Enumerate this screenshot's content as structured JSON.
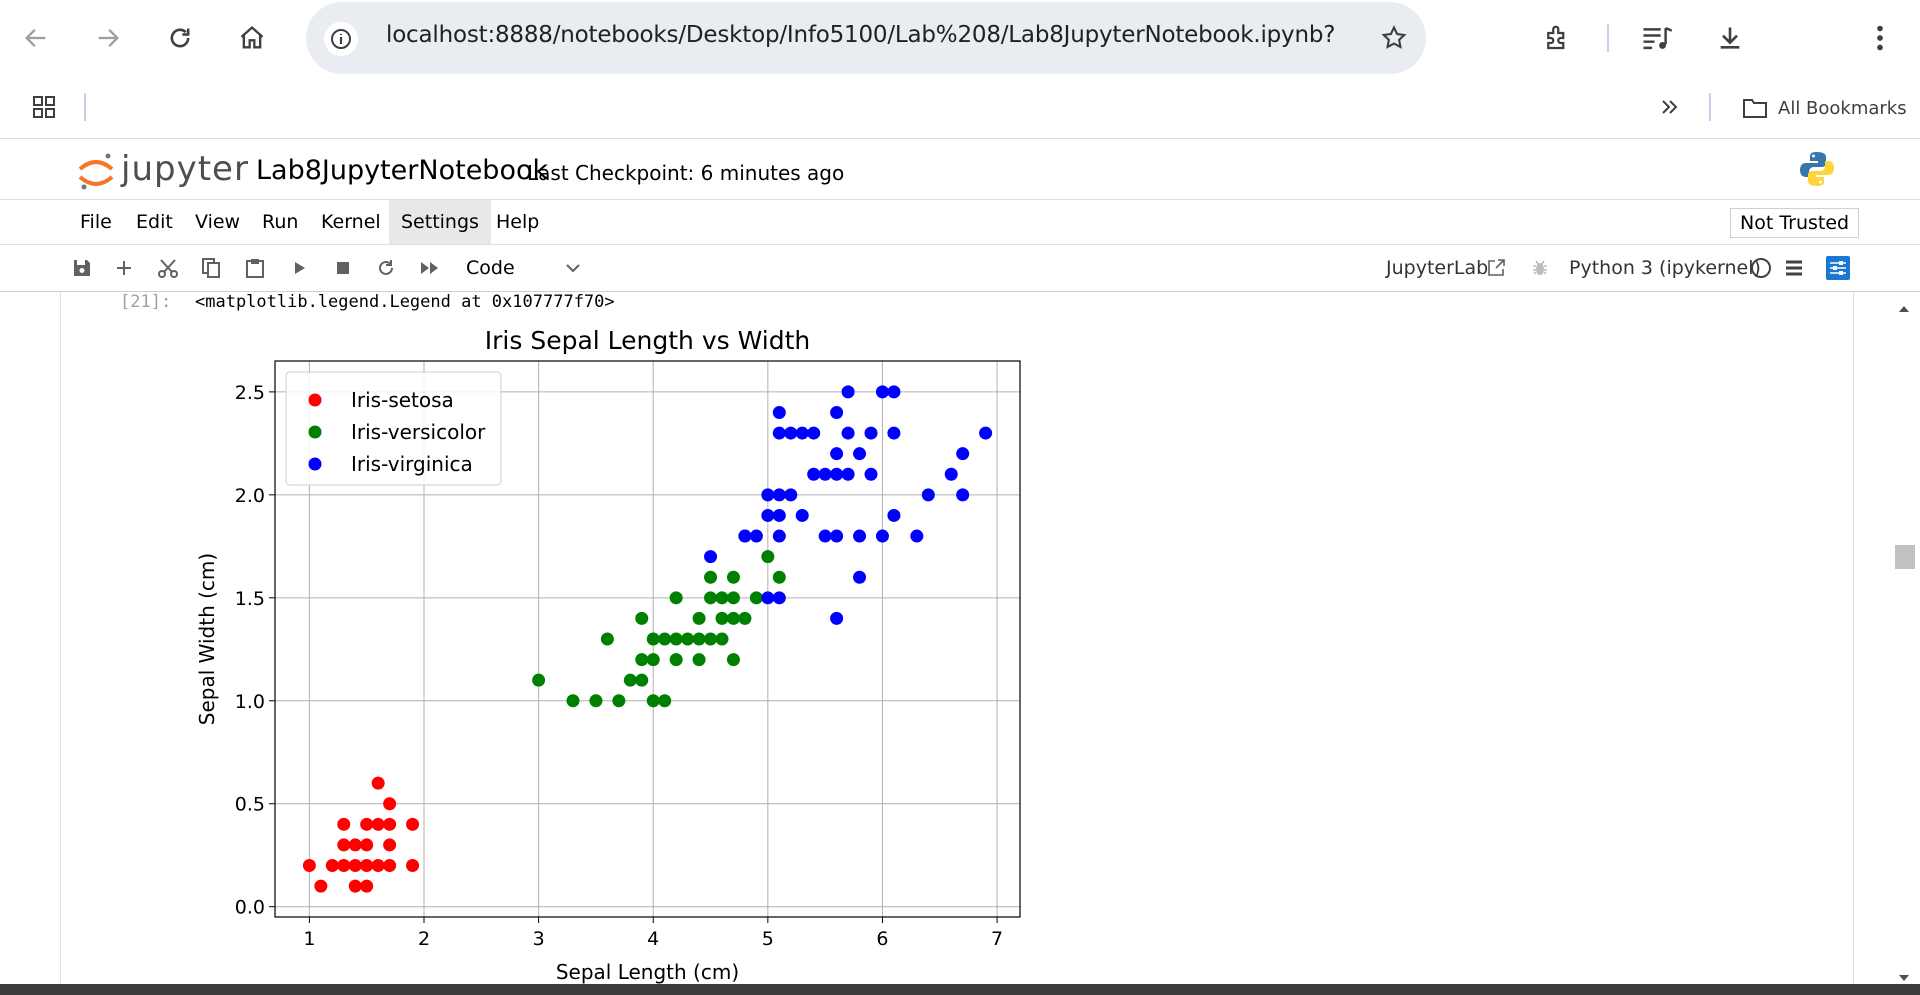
{
  "browser": {
    "url": "localhost:8888/notebooks/Desktop/Info5100/Lab%208/Lab8JupyterNotebook.ipynb?",
    "bookmarks_label": "All Bookmarks",
    "icons": [
      "back-icon",
      "forward-icon",
      "reload-icon",
      "home-icon",
      "info-icon",
      "star-icon",
      "extensions-icon",
      "media-icon",
      "download-icon",
      "more-icon",
      "apps-icon",
      "chevrons-icon",
      "folder-icon"
    ]
  },
  "jupyter": {
    "logo_text": "jupyter",
    "notebook_name": "Lab8JupyterNotebook",
    "checkpoint": "Last Checkpoint: 6 minutes ago",
    "menu": [
      "File",
      "Edit",
      "View",
      "Run",
      "Kernel",
      "Settings",
      "Help"
    ],
    "active_menu": "Settings",
    "trust_status": "Not Trusted",
    "cell_type": "Code",
    "jupyterlab_link": "JupyterLab",
    "kernel": "Python 3 (ipykernel)"
  },
  "output": {
    "prompt": "[21]:",
    "text": "<matplotlib.legend.Legend at 0x107777f70>"
  },
  "colors": {
    "setosa": "#ff0000",
    "versicolor": "#008000",
    "virginica": "#0000ff"
  },
  "chart_data": {
    "type": "scatter",
    "title": "Iris Sepal Length vs Width",
    "xlabel": "Sepal Length (cm)",
    "ylabel": "Sepal Width (cm)",
    "xlim": [
      0.7,
      7.2
    ],
    "ylim": [
      -0.05,
      2.65
    ],
    "xticks": [
      1,
      2,
      3,
      4,
      5,
      6,
      7
    ],
    "yticks": [
      "0.0",
      "0.5",
      "1.0",
      "1.5",
      "2.0",
      "2.5"
    ],
    "ytick_values": [
      0.0,
      0.5,
      1.0,
      1.5,
      2.0,
      2.5
    ],
    "grid": true,
    "legend_position": "upper-left",
    "series": [
      {
        "name": "Iris-setosa",
        "color": "#ff0000",
        "points": [
          [
            1.0,
            0.2
          ],
          [
            1.1,
            0.1
          ],
          [
            1.2,
            0.2
          ],
          [
            1.3,
            0.2
          ],
          [
            1.3,
            0.3
          ],
          [
            1.3,
            0.4
          ],
          [
            1.4,
            0.1
          ],
          [
            1.4,
            0.2
          ],
          [
            1.4,
            0.3
          ],
          [
            1.5,
            0.1
          ],
          [
            1.5,
            0.2
          ],
          [
            1.5,
            0.3
          ],
          [
            1.5,
            0.4
          ],
          [
            1.6,
            0.2
          ],
          [
            1.6,
            0.4
          ],
          [
            1.6,
            0.6
          ],
          [
            1.7,
            0.2
          ],
          [
            1.7,
            0.3
          ],
          [
            1.7,
            0.4
          ],
          [
            1.7,
            0.5
          ],
          [
            1.9,
            0.2
          ],
          [
            1.9,
            0.4
          ]
        ]
      },
      {
        "name": "Iris-versicolor",
        "color": "#008000",
        "points": [
          [
            3.0,
            1.1
          ],
          [
            3.3,
            1.0
          ],
          [
            3.5,
            1.0
          ],
          [
            3.6,
            1.3
          ],
          [
            3.7,
            1.0
          ],
          [
            3.8,
            1.1
          ],
          [
            3.9,
            1.1
          ],
          [
            3.9,
            1.2
          ],
          [
            3.9,
            1.4
          ],
          [
            4.0,
            1.0
          ],
          [
            4.0,
            1.2
          ],
          [
            4.0,
            1.3
          ],
          [
            4.1,
            1.0
          ],
          [
            4.1,
            1.3
          ],
          [
            4.2,
            1.2
          ],
          [
            4.2,
            1.3
          ],
          [
            4.2,
            1.5
          ],
          [
            4.3,
            1.3
          ],
          [
            4.4,
            1.2
          ],
          [
            4.4,
            1.3
          ],
          [
            4.4,
            1.4
          ],
          [
            4.5,
            1.3
          ],
          [
            4.5,
            1.5
          ],
          [
            4.5,
            1.6
          ],
          [
            4.6,
            1.3
          ],
          [
            4.6,
            1.4
          ],
          [
            4.6,
            1.5
          ],
          [
            4.7,
            1.2
          ],
          [
            4.7,
            1.4
          ],
          [
            4.7,
            1.5
          ],
          [
            4.7,
            1.6
          ],
          [
            4.8,
            1.4
          ],
          [
            4.8,
            1.8
          ],
          [
            4.9,
            1.5
          ],
          [
            5.0,
            1.7
          ],
          [
            5.1,
            1.6
          ]
        ]
      },
      {
        "name": "Iris-virginica",
        "color": "#0000ff",
        "points": [
          [
            4.5,
            1.7
          ],
          [
            4.8,
            1.8
          ],
          [
            4.9,
            1.8
          ],
          [
            5.0,
            1.5
          ],
          [
            5.0,
            2.0
          ],
          [
            5.0,
            1.9
          ],
          [
            5.1,
            1.5
          ],
          [
            5.1,
            1.8
          ],
          [
            5.1,
            1.9
          ],
          [
            5.1,
            2.0
          ],
          [
            5.1,
            2.3
          ],
          [
            5.1,
            2.4
          ],
          [
            5.2,
            2.0
          ],
          [
            5.2,
            2.3
          ],
          [
            5.3,
            1.9
          ],
          [
            5.3,
            2.3
          ],
          [
            5.4,
            2.1
          ],
          [
            5.4,
            2.3
          ],
          [
            5.5,
            1.8
          ],
          [
            5.5,
            2.1
          ],
          [
            5.6,
            1.4
          ],
          [
            5.6,
            1.8
          ],
          [
            5.6,
            2.1
          ],
          [
            5.6,
            2.2
          ],
          [
            5.6,
            2.4
          ],
          [
            5.7,
            2.1
          ],
          [
            5.7,
            2.3
          ],
          [
            5.7,
            2.5
          ],
          [
            5.8,
            1.6
          ],
          [
            5.8,
            1.8
          ],
          [
            5.8,
            2.2
          ],
          [
            5.9,
            2.1
          ],
          [
            5.9,
            2.3
          ],
          [
            6.0,
            1.8
          ],
          [
            6.0,
            2.5
          ],
          [
            6.1,
            1.9
          ],
          [
            6.1,
            2.3
          ],
          [
            6.1,
            2.5
          ],
          [
            6.3,
            1.8
          ],
          [
            6.4,
            2.0
          ],
          [
            6.6,
            2.1
          ],
          [
            6.7,
            2.0
          ],
          [
            6.7,
            2.2
          ],
          [
            6.9,
            2.3
          ]
        ]
      }
    ]
  }
}
